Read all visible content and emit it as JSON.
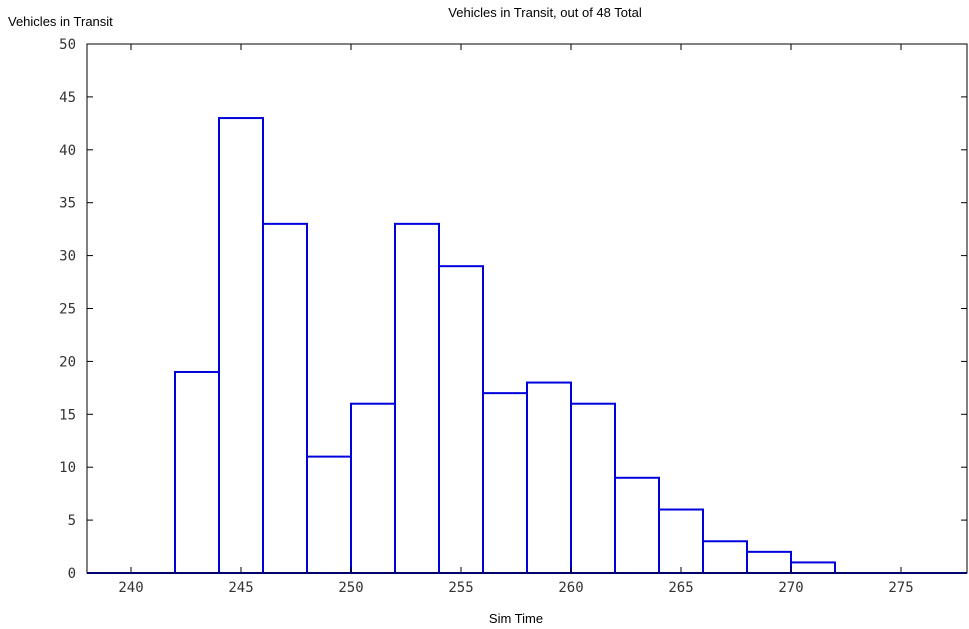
{
  "chart_data": {
    "type": "bar",
    "title": "Vehicles in Transit, out of 48 Total",
    "ylabel": "Vehicles in Transit",
    "xlabel": "Sim Time",
    "xlim": [
      238,
      278
    ],
    "ylim": [
      0,
      50
    ],
    "xticks": [
      240,
      245,
      250,
      255,
      260,
      265,
      270,
      275
    ],
    "yticks": [
      0,
      5,
      10,
      15,
      20,
      25,
      30,
      35,
      40,
      45,
      50
    ],
    "bin_width": 2,
    "bins": [
      {
        "x0": 238,
        "x1": 240,
        "value": 0
      },
      {
        "x0": 240,
        "x1": 242,
        "value": 0
      },
      {
        "x0": 242,
        "x1": 244,
        "value": 19
      },
      {
        "x0": 244,
        "x1": 246,
        "value": 43
      },
      {
        "x0": 246,
        "x1": 248,
        "value": 33
      },
      {
        "x0": 248,
        "x1": 250,
        "value": 11
      },
      {
        "x0": 250,
        "x1": 252,
        "value": 16
      },
      {
        "x0": 252,
        "x1": 254,
        "value": 33
      },
      {
        "x0": 254,
        "x1": 256,
        "value": 29
      },
      {
        "x0": 256,
        "x1": 258,
        "value": 17
      },
      {
        "x0": 258,
        "x1": 260,
        "value": 18
      },
      {
        "x0": 260,
        "x1": 262,
        "value": 16
      },
      {
        "x0": 262,
        "x1": 264,
        "value": 9
      },
      {
        "x0": 264,
        "x1": 266,
        "value": 6
      },
      {
        "x0": 266,
        "x1": 268,
        "value": 3
      },
      {
        "x0": 268,
        "x1": 270,
        "value": 2
      },
      {
        "x0": 270,
        "x1": 272,
        "value": 1
      },
      {
        "x0": 272,
        "x1": 274,
        "value": 0
      },
      {
        "x0": 274,
        "x1": 276,
        "value": 0
      },
      {
        "x0": 276,
        "x1": 278,
        "value": 0
      }
    ],
    "bar_color": "#0000dd",
    "bar_fill": "#ffffff",
    "grid": false
  }
}
